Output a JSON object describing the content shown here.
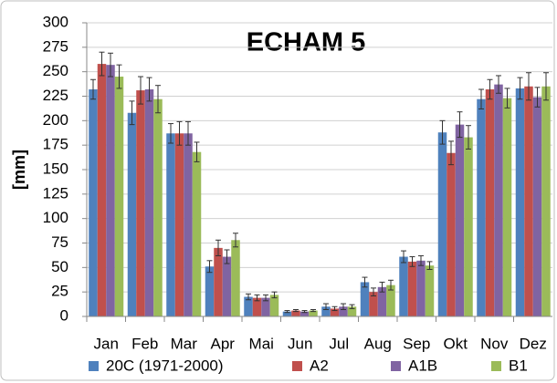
{
  "chart_data": {
    "type": "bar",
    "title": "ECHAM 5",
    "y_label": "[mm]",
    "categories": [
      "Jan",
      "Feb",
      "Mar",
      "Apr",
      "Mai",
      "Jun",
      "Jul",
      "Aug",
      "Sep",
      "Okt",
      "Nov",
      "Dez"
    ],
    "series": [
      {
        "name": "20C (1971-2000)",
        "color": "#4f81bd",
        "values": [
          232,
          208,
          187,
          51,
          20,
          5,
          10,
          35,
          61,
          188,
          222,
          233
        ],
        "errors": [
          10,
          12,
          10,
          6,
          3,
          1,
          3,
          5,
          6,
          12,
          10,
          11
        ]
      },
      {
        "name": "A2",
        "color": "#c0504d",
        "values": [
          258,
          231,
          187,
          70,
          19,
          6,
          8,
          25,
          56,
          167,
          232,
          235
        ],
        "errors": [
          12,
          14,
          12,
          8,
          3,
          1,
          2,
          4,
          5,
          12,
          10,
          14
        ]
      },
      {
        "name": "A1B",
        "color": "#8064a2",
        "values": [
          257,
          232,
          187,
          61,
          19,
          5,
          10,
          30,
          57,
          196,
          237,
          224
        ],
        "errors": [
          12,
          12,
          12,
          7,
          3,
          1,
          3,
          5,
          5,
          13,
          9,
          10
        ]
      },
      {
        "name": "B1",
        "color": "#9bbb59",
        "values": [
          245,
          222,
          168,
          78,
          22,
          6,
          10,
          32,
          52,
          183,
          223,
          235
        ],
        "errors": [
          12,
          14,
          10,
          7,
          3,
          1,
          2,
          5,
          4,
          12,
          10,
          14
        ]
      }
    ],
    "ylim": [
      0,
      300
    ],
    "yticks": [
      0,
      25,
      50,
      75,
      100,
      125,
      150,
      175,
      200,
      225,
      250,
      275,
      300
    ],
    "grid": true
  }
}
